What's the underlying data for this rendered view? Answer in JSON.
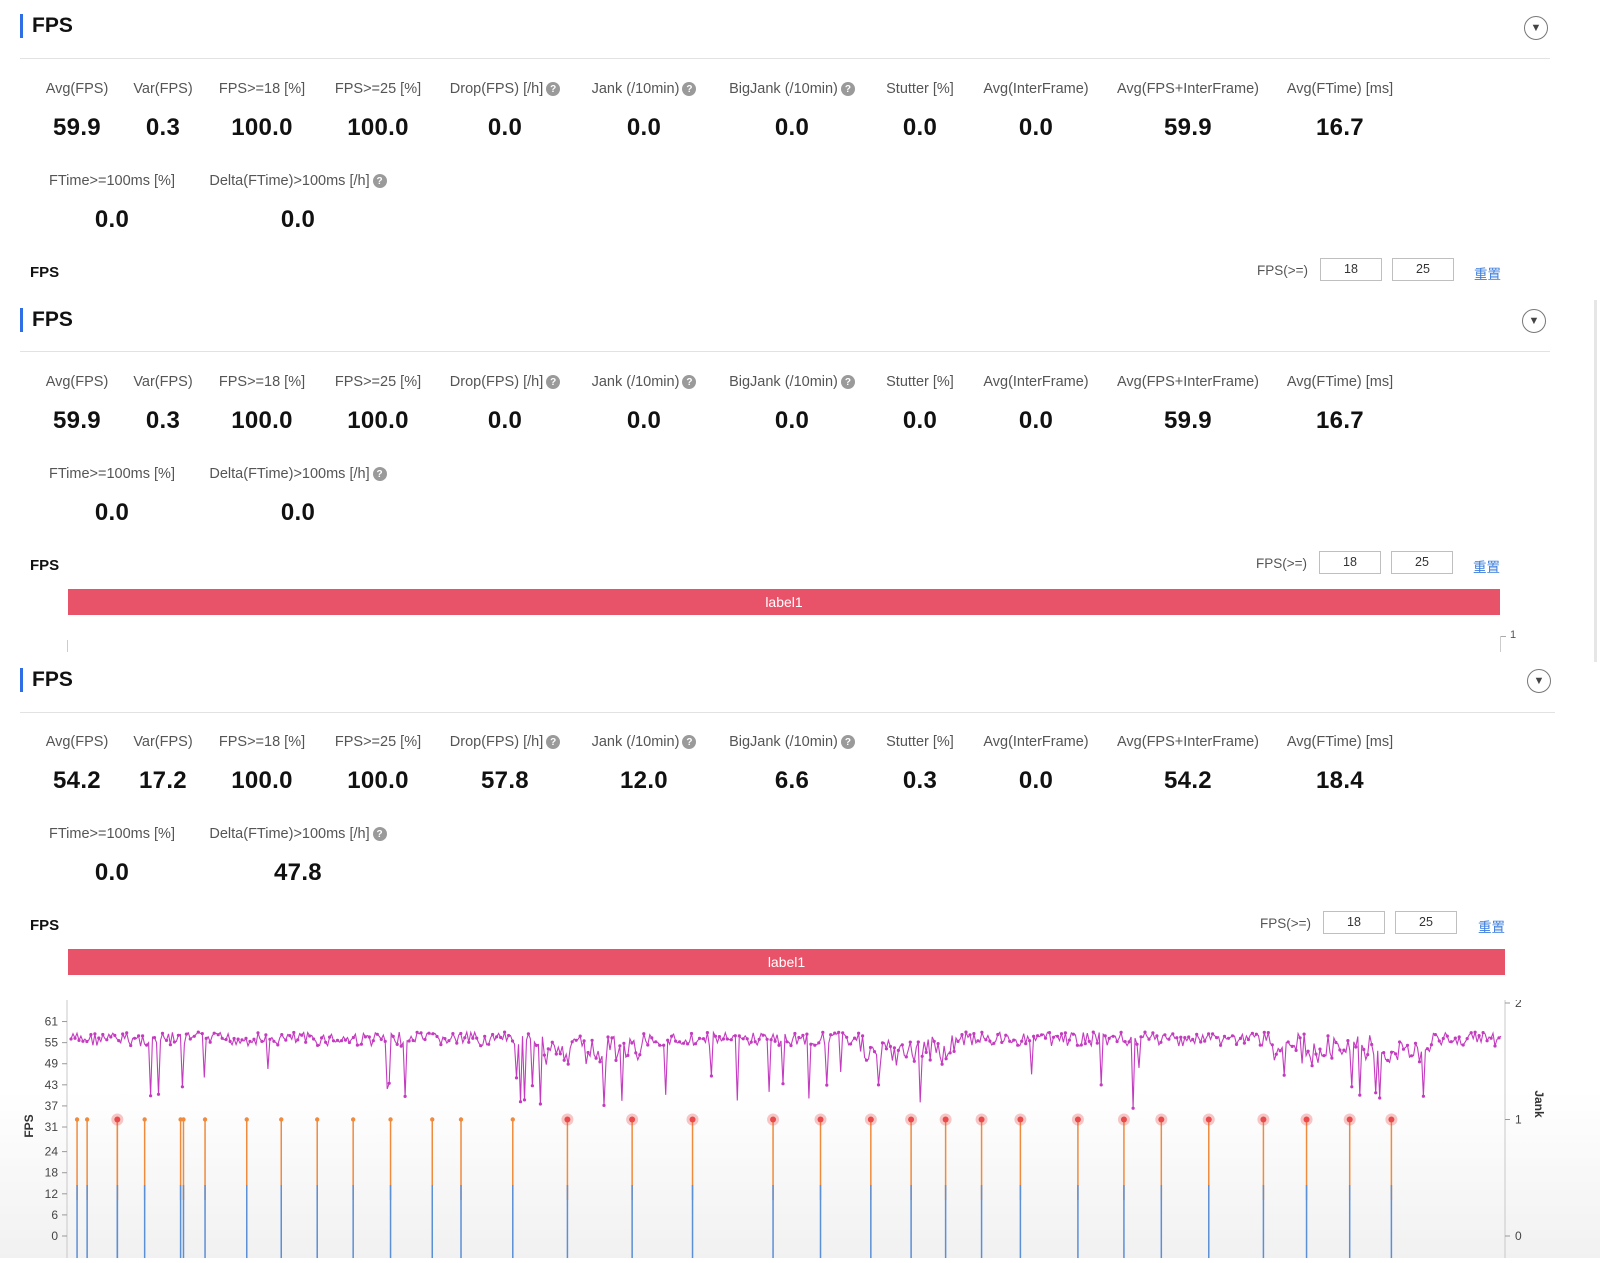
{
  "panels": [
    {
      "title": "FPS",
      "metrics_row1": [
        {
          "label": "Avg(FPS)",
          "value": "59.9",
          "help": false
        },
        {
          "label": "Var(FPS)",
          "value": "0.3",
          "help": false
        },
        {
          "label": "FPS>=18 [%]",
          "value": "100.0",
          "help": false
        },
        {
          "label": "FPS>=25 [%]",
          "value": "100.0",
          "help": false
        },
        {
          "label": "Drop(FPS) [/h]",
          "value": "0.0",
          "help": true
        },
        {
          "label": "Jank (/10min)",
          "value": "0.0",
          "help": true
        },
        {
          "label": "BigJank (/10min)",
          "value": "0.0",
          "help": true
        },
        {
          "label": "Stutter [%]",
          "value": "0.0",
          "help": false
        },
        {
          "label": "Avg(InterFrame)",
          "value": "0.0",
          "help": false
        },
        {
          "label": "Avg(FPS+InterFrame)",
          "value": "59.9",
          "help": false
        },
        {
          "label": "Avg(FTime) [ms]",
          "value": "16.7",
          "help": false
        }
      ],
      "metrics_row2": [
        {
          "label": "FTime>=100ms [%]",
          "value": "0.0",
          "help": false
        },
        {
          "label": "Delta(FTime)>100ms [/h]",
          "value": "0.0",
          "help": true
        }
      ],
      "chart_title": "FPS",
      "threshold_label": "FPS(>=)",
      "threshold_low": "18",
      "threshold_high": "25",
      "reset_label": "重置"
    },
    {
      "title": "FPS",
      "metrics_row1": [
        {
          "label": "Avg(FPS)",
          "value": "59.9",
          "help": false
        },
        {
          "label": "Var(FPS)",
          "value": "0.3",
          "help": false
        },
        {
          "label": "FPS>=18 [%]",
          "value": "100.0",
          "help": false
        },
        {
          "label": "FPS>=25 [%]",
          "value": "100.0",
          "help": false
        },
        {
          "label": "Drop(FPS) [/h]",
          "value": "0.0",
          "help": true
        },
        {
          "label": "Jank (/10min)",
          "value": "0.0",
          "help": true
        },
        {
          "label": "BigJank (/10min)",
          "value": "0.0",
          "help": true
        },
        {
          "label": "Stutter [%]",
          "value": "0.0",
          "help": false
        },
        {
          "label": "Avg(InterFrame)",
          "value": "0.0",
          "help": false
        },
        {
          "label": "Avg(FPS+InterFrame)",
          "value": "59.9",
          "help": false
        },
        {
          "label": "Avg(FTime) [ms]",
          "value": "16.7",
          "help": false
        }
      ],
      "metrics_row2": [
        {
          "label": "FTime>=100ms [%]",
          "value": "0.0",
          "help": false
        },
        {
          "label": "Delta(FTime)>100ms [/h]",
          "value": "0.0",
          "help": true
        }
      ],
      "chart_title": "FPS",
      "threshold_label": "FPS(>=)",
      "threshold_low": "18",
      "threshold_high": "25",
      "reset_label": "重置",
      "label_bar": "label1",
      "right_axis_tick": "1"
    },
    {
      "title": "FPS",
      "metrics_row1": [
        {
          "label": "Avg(FPS)",
          "value": "54.2",
          "help": false
        },
        {
          "label": "Var(FPS)",
          "value": "17.2",
          "help": false
        },
        {
          "label": "FPS>=18 [%]",
          "value": "100.0",
          "help": false
        },
        {
          "label": "FPS>=25 [%]",
          "value": "100.0",
          "help": false
        },
        {
          "label": "Drop(FPS) [/h]",
          "value": "57.8",
          "help": true
        },
        {
          "label": "Jank (/10min)",
          "value": "12.0",
          "help": true
        },
        {
          "label": "BigJank (/10min)",
          "value": "6.6",
          "help": true
        },
        {
          "label": "Stutter [%]",
          "value": "0.3",
          "help": false
        },
        {
          "label": "Avg(InterFrame)",
          "value": "0.0",
          "help": false
        },
        {
          "label": "Avg(FPS+InterFrame)",
          "value": "54.2",
          "help": false
        },
        {
          "label": "Avg(FTime) [ms]",
          "value": "18.4",
          "help": false
        }
      ],
      "metrics_row2": [
        {
          "label": "FTime>=100ms [%]",
          "value": "0.0",
          "help": false
        },
        {
          "label": "Delta(FTime)>100ms [/h]",
          "value": "47.8",
          "help": true
        }
      ],
      "chart_title": "FPS",
      "threshold_label": "FPS(>=)",
      "threshold_low": "18",
      "threshold_high": "25",
      "reset_label": "重置",
      "label_bar": "label1"
    }
  ],
  "icons": {
    "toggle": "chevron-down-icon",
    "help": "question-circle-icon"
  },
  "colors": {
    "accent": "#2f6fe6",
    "label_bar": "#e9536a",
    "fps_line": "#c43bc0",
    "jank": "#f08a3c",
    "big_jank": "#e94a4a",
    "stutter": "#5b8fd6",
    "link": "#3b7ddd"
  },
  "chart_data": {
    "type": "line",
    "ylabel": "FPS",
    "y2label": "Jank",
    "y_ticks": [
      "0",
      "6",
      "12",
      "18",
      "24",
      "31",
      "37",
      "43",
      "49",
      "55",
      "61"
    ],
    "y2_ticks": [
      "0",
      "1",
      "2"
    ],
    "ylim": [
      0,
      64
    ],
    "y2lim": [
      0,
      2
    ],
    "series": [
      {
        "name": "FPS",
        "color": "#c43bc0",
        "approx_mean": 57,
        "approx_min": 36,
        "approx_max": 61
      },
      {
        "name": "Jank",
        "color": "#f08a3c",
        "marker_value": 1,
        "positions_fraction": [
          0.007,
          0.014,
          0.035,
          0.054,
          0.079,
          0.081,
          0.096,
          0.125,
          0.149,
          0.174,
          0.199,
          0.225,
          0.254,
          0.274,
          0.31
        ]
      },
      {
        "name": "BigJank",
        "color": "#e94a4a",
        "marker_value": 1,
        "positions_fraction": [
          0.035,
          0.348,
          0.393,
          0.435,
          0.491,
          0.524,
          0.559,
          0.587,
          0.611,
          0.636,
          0.663,
          0.703,
          0.735,
          0.761,
          0.794,
          0.832,
          0.862,
          0.892,
          0.921
        ]
      }
    ]
  }
}
